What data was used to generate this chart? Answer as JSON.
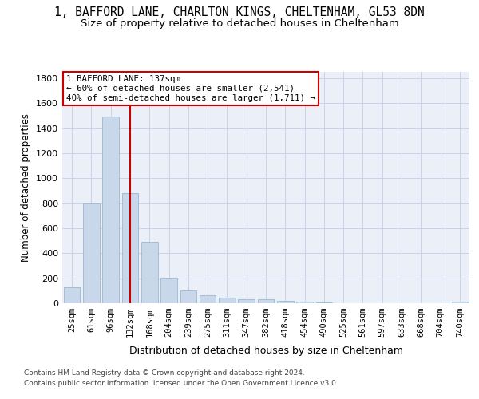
{
  "title_line1": "1, BAFFORD LANE, CHARLTON KINGS, CHELTENHAM, GL53 8DN",
  "title_line2": "Size of property relative to detached houses in Cheltenham",
  "xlabel": "Distribution of detached houses by size in Cheltenham",
  "ylabel": "Number of detached properties",
  "categories": [
    "25sqm",
    "61sqm",
    "96sqm",
    "132sqm",
    "168sqm",
    "204sqm",
    "239sqm",
    "275sqm",
    "311sqm",
    "347sqm",
    "382sqm",
    "418sqm",
    "454sqm",
    "490sqm",
    "525sqm",
    "561sqm",
    "597sqm",
    "633sqm",
    "668sqm",
    "704sqm",
    "740sqm"
  ],
  "values": [
    125,
    800,
    1490,
    880,
    490,
    205,
    105,
    65,
    45,
    35,
    30,
    20,
    10,
    5,
    3,
    2,
    2,
    1,
    1,
    1,
    10
  ],
  "bar_color": "#c8d8ea",
  "bar_edge_color": "#9ab8d0",
  "vline_color": "#cc0000",
  "vline_x": 3.0,
  "annotation_line1": "1 BAFFORD LANE: 137sqm",
  "annotation_line2": "← 60% of detached houses are smaller (2,541)",
  "annotation_line3": "40% of semi-detached houses are larger (1,711) →",
  "ylim_max": 1850,
  "yticks": [
    0,
    200,
    400,
    600,
    800,
    1000,
    1200,
    1400,
    1600,
    1800
  ],
  "grid_color": "#c8d4e8",
  "axes_bg": "#eaeff8",
  "footnote_line1": "Contains HM Land Registry data © Crown copyright and database right 2024.",
  "footnote_line2": "Contains public sector information licensed under the Open Government Licence v3.0.",
  "title_fontsize": 10.5,
  "subtitle_fontsize": 9.5,
  "tick_fontsize": 7.5,
  "ylabel_fontsize": 8.5,
  "xlabel_fontsize": 9,
  "annot_fontsize": 7.8,
  "footnote_fontsize": 6.5
}
